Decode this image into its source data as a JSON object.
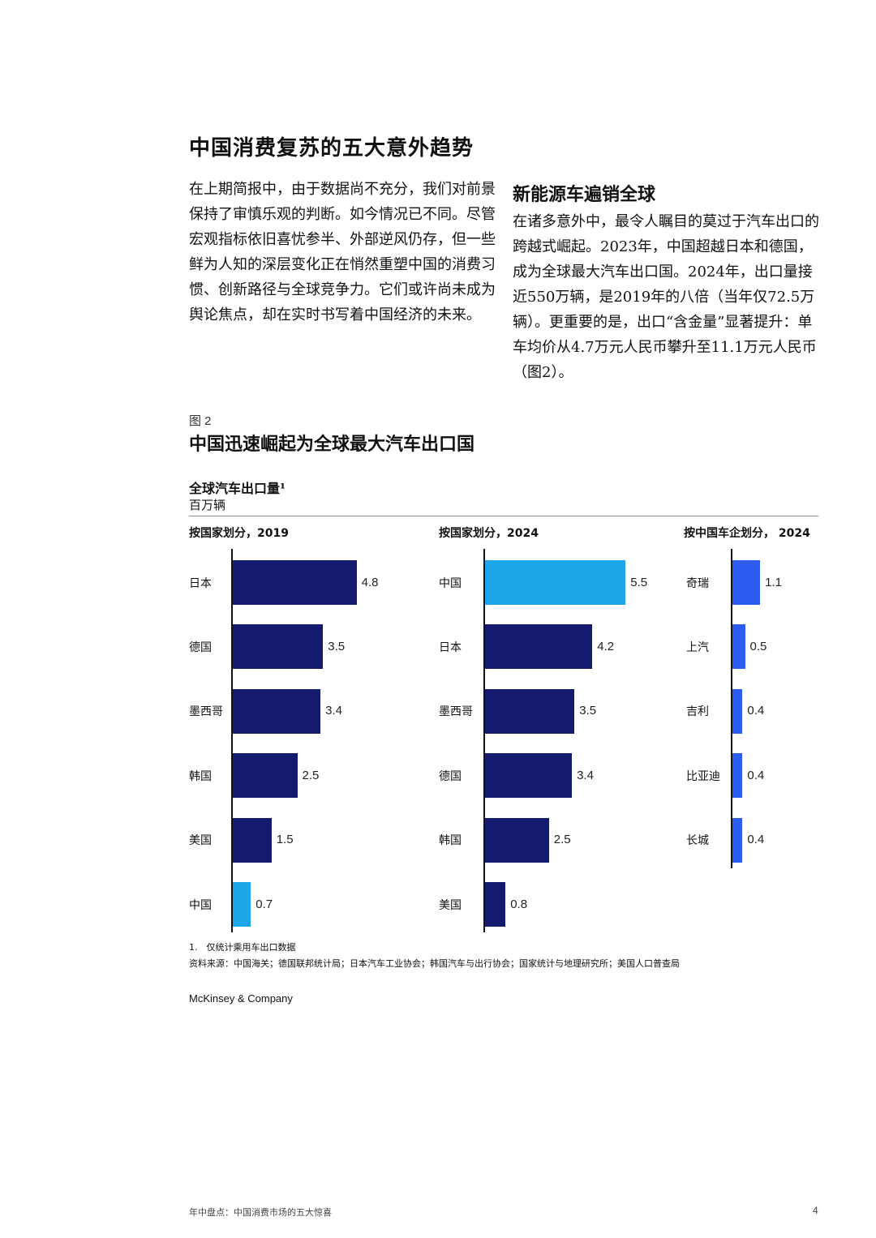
{
  "article": {
    "title": "中国消费复苏的五大意外趋势",
    "intro": "在上期简报中，由于数据尚不充分，我们对前景保持了审慎乐观的判断。如今情况已不同。尽管宏观指标依旧喜忧参半、外部逆风仍存，但一些鲜为人知的深层变化正在悄然重塑中国的消费习惯、创新路径与全球竞争力。它们或许尚未成为舆论焦点，却在实时书写着中国经济的未来。",
    "section_title": "新能源车遍销全球",
    "section_body": "在诸多意外中，最令人瞩目的莫过于汽车出口的跨越式崛起。2023年，中国超越日本和德国，成为全球最大汽车出口国。2024年，出口量接近550万辆，是2019年的八倍（当年仅72.5万辆）。更重要的是，出口“含金量”显著提升：单车均价从4.7万元人民币攀升至11.1万元人民币（图2）。"
  },
  "figure": {
    "label": "图 2",
    "title": "中国迅速崛起为全球最大汽车出口国",
    "chart_title": "全球汽车出口量¹",
    "unit": "百万辆",
    "footnote": "1.　仅统计乘用车出口数据",
    "source": "资料来源：中国海关；德国联邦统计局；日本汽车工业协会；韩国汽车与出行协会；国家统计与地理研究所；美国人口普查局"
  },
  "chart_data": [
    {
      "type": "bar",
      "orientation": "horizontal",
      "title": "按国家划分，2019",
      "categories": [
        "日本",
        "德国",
        "墨西哥",
        "韩国",
        "美国",
        "中国"
      ],
      "values": [
        4.8,
        3.5,
        3.4,
        2.5,
        1.5,
        0.7
      ],
      "colors": [
        "#141a6e",
        "#141a6e",
        "#141a6e",
        "#141a6e",
        "#141a6e",
        "#1ea7e8"
      ]
    },
    {
      "type": "bar",
      "orientation": "horizontal",
      "title": "按国家划分，2024",
      "categories": [
        "中国",
        "日本",
        "墨西哥",
        "德国",
        "韩国",
        "美国"
      ],
      "values": [
        5.5,
        4.2,
        3.5,
        3.4,
        2.5,
        0.8
      ],
      "colors": [
        "#1ea7e8",
        "#141a6e",
        "#141a6e",
        "#141a6e",
        "#141a6e",
        "#141a6e"
      ]
    },
    {
      "type": "bar",
      "orientation": "horizontal",
      "title": "按中国车企划分， 2024",
      "categories": [
        "奇瑞",
        "上汽",
        "吉利",
        "比亚迪",
        "长城"
      ],
      "values": [
        1.1,
        0.5,
        0.4,
        0.4,
        0.4
      ],
      "colors": [
        "#2f5cf0",
        "#2f5cf0",
        "#2f5cf0",
        "#2f5cf0",
        "#2f5cf0"
      ]
    }
  ],
  "footer": {
    "brand": "McKinsey & Company",
    "running_title": "年中盘点：中国消费市场的五大惊喜",
    "page_number": "4"
  }
}
